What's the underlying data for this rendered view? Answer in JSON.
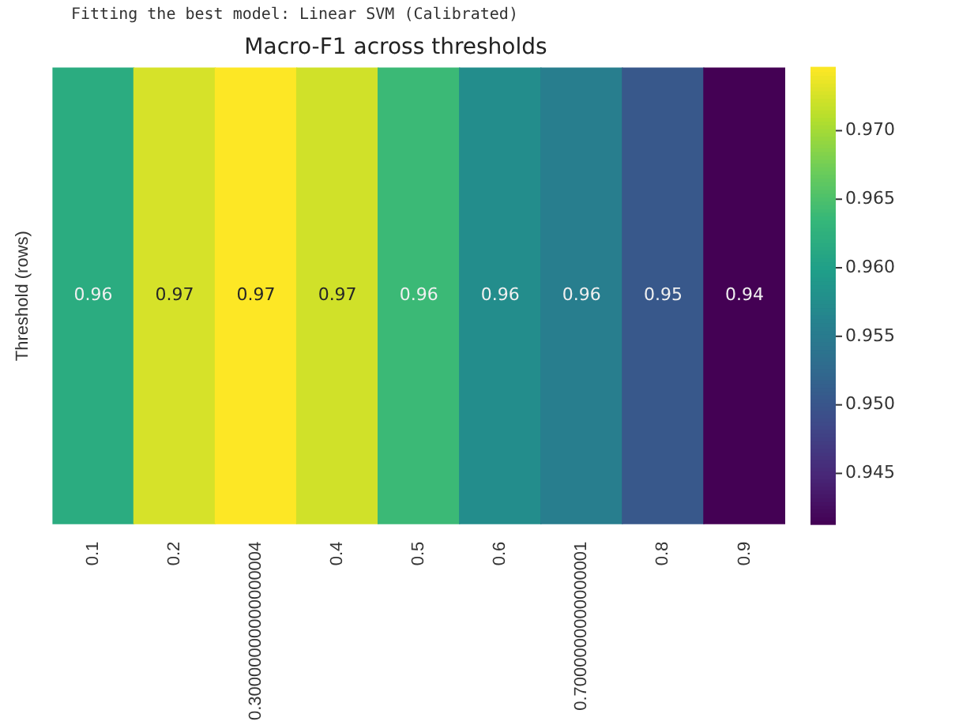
{
  "chart_data": {
    "type": "heatmap",
    "title": "Macro-F1 across thresholds",
    "ylabel": "Threshold (rows)",
    "annotations": [
      "Fitting the best model: Linear SVM (Calibrated)"
    ],
    "categories": [
      "0.1",
      "0.2",
      "0.30000000000000004",
      "0.4",
      "0.5",
      "0.6",
      "0.7000000000000001",
      "0.8",
      "0.9"
    ],
    "y_categories": [
      null
    ],
    "cells": [
      [
        0.9618,
        0.9726,
        0.9746,
        0.9723,
        0.9639,
        0.9575,
        0.9555,
        0.9504,
        0.9413
      ]
    ],
    "cell_labels": [
      [
        "0.96",
        "0.97",
        "0.97",
        "0.97",
        "0.96",
        "0.96",
        "0.96",
        "0.95",
        "0.94"
      ]
    ],
    "clim": [
      0.9413,
      0.9746
    ],
    "cticks": [
      0.945,
      {
        "value": 0.95,
        "label": "0.950"
      },
      0.955,
      {
        "value": 0.96,
        "label": "0.960"
      },
      0.965,
      {
        "value": 0.97,
        "label": "0.970"
      }
    ],
    "tick_labels": "x"
  }
}
